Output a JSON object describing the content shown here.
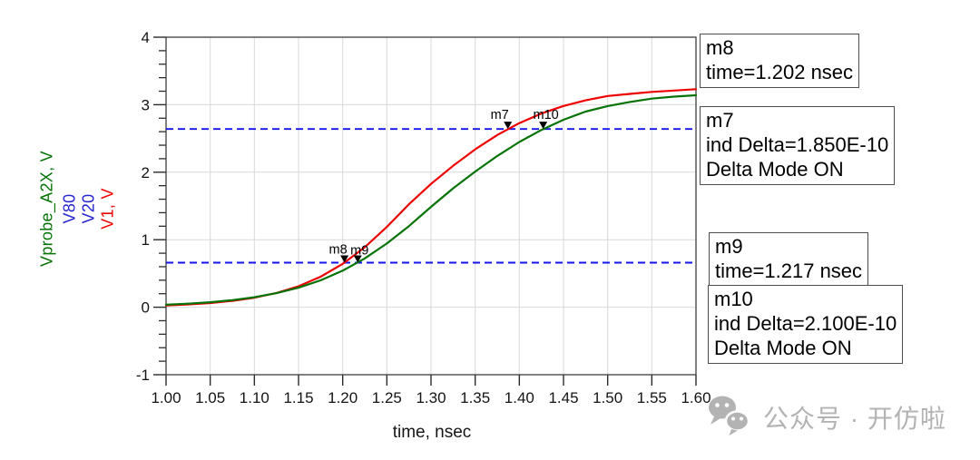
{
  "watermark": {
    "icon": "wechat-icon",
    "text": "公众号 · 开仿啦",
    "color": "#b3b3b3"
  },
  "annotations": [
    {
      "id": "m8",
      "lines": [
        "m8",
        "time=1.202 nsec"
      ]
    },
    {
      "id": "m7",
      "lines": [
        "m7",
        "ind Delta=1.850E-10",
        "Delta Mode ON"
      ]
    },
    {
      "id": "m9",
      "lines": [
        "m9",
        "time=1.217 nsec"
      ]
    },
    {
      "id": "m10",
      "lines": [
        "m10",
        "ind Delta=2.100E-10",
        "Delta Mode ON"
      ]
    }
  ],
  "colors": {
    "grid": "#d9d9d9",
    "border": "#3d3d3d",
    "tick": "#2b2b2b",
    "tick_label": "#141414",
    "marker": "#000000"
  },
  "chart_data": {
    "type": "line",
    "title": "",
    "xlabel": "time, nsec",
    "ylabel_parts": [
      {
        "text": "Vprobe_A2X, V",
        "color": "#067306"
      },
      {
        "text": "V80",
        "color": "#2323cf"
      },
      {
        "text": "V20",
        "color": "#2323cf"
      },
      {
        "text": "V1, V",
        "color": "#ee0000"
      }
    ],
    "xlim": [
      1.0,
      1.6
    ],
    "ylim": [
      -1,
      4
    ],
    "grid": true,
    "xtick_labels": [
      "1.00",
      "1.05",
      "1.10",
      "1.15",
      "1.20",
      "1.25",
      "1.30",
      "1.35",
      "1.40",
      "1.45",
      "1.50",
      "1.55",
      "1.60"
    ],
    "ytick_labels": [
      "-1",
      "0",
      "1",
      "2",
      "3",
      "4"
    ],
    "y_minor_step": 0.2,
    "x": [
      1.0,
      1.025,
      1.05,
      1.075,
      1.1,
      1.125,
      1.15,
      1.175,
      1.2,
      1.225,
      1.25,
      1.275,
      1.3,
      1.325,
      1.35,
      1.375,
      1.4,
      1.425,
      1.45,
      1.475,
      1.5,
      1.525,
      1.55,
      1.575,
      1.6
    ],
    "series": [
      {
        "name": "V1",
        "color": "#ee0000",
        "values": [
          0.027,
          0.041,
          0.062,
          0.094,
          0.141,
          0.211,
          0.311,
          0.452,
          0.643,
          0.889,
          1.189,
          1.525,
          1.827,
          2.094,
          2.339,
          2.551,
          2.727,
          2.87,
          2.981,
          3.065,
          3.129,
          3.16,
          3.19,
          3.21,
          3.23
        ]
      },
      {
        "name": "Vprobe_A2X",
        "color": "#067306",
        "values": [
          0.037,
          0.052,
          0.074,
          0.105,
          0.148,
          0.208,
          0.289,
          0.398,
          0.541,
          0.723,
          0.944,
          1.202,
          1.486,
          1.761,
          2.009,
          2.24,
          2.448,
          2.627,
          2.777,
          2.898,
          2.98,
          3.04,
          3.09,
          3.12,
          3.14
        ]
      }
    ],
    "ref_lines": [
      {
        "name": "V80",
        "y": 2.64,
        "color": "#1414ee",
        "style": "dashed"
      },
      {
        "name": "V20",
        "y": 0.66,
        "color": "#1414ee",
        "style": "dashed"
      }
    ],
    "markers": [
      {
        "id": "m8",
        "t": 1.202,
        "v": 0.66,
        "series": "V1"
      },
      {
        "id": "m9",
        "t": 1.217,
        "v": 0.66,
        "series": "Vprobe_A2X"
      },
      {
        "id": "m7",
        "t": 1.387,
        "v": 2.64,
        "series": "V1"
      },
      {
        "id": "m10",
        "t": 1.427,
        "v": 2.64,
        "series": "Vprobe_A2X"
      }
    ]
  }
}
